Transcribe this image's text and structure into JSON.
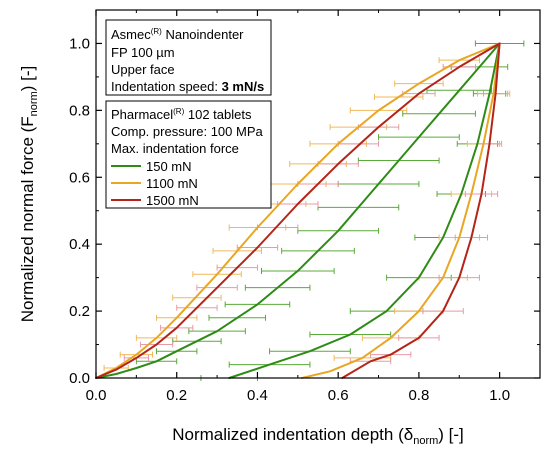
{
  "chart_data": {
    "type": "line",
    "xlabel": {
      "main": "Normalized indentation depth (δ",
      "sub": "norm",
      "end": ") [-]"
    },
    "ylabel": {
      "main": "Normalized normal force (F",
      "sub": "norm",
      "end": ") [-]"
    },
    "xlim": [
      0,
      1.1
    ],
    "ylim": [
      0,
      1.1
    ],
    "xticks": [
      0.0,
      0.2,
      0.4,
      0.6,
      0.8,
      1.0
    ],
    "yticks": [
      0.0,
      0.2,
      0.4,
      0.6,
      0.8,
      1.0
    ],
    "xtick_labels": [
      "0.0",
      "0.2",
      "0.4",
      "0.6",
      "0.8",
      "1.0"
    ],
    "ytick_labels": [
      "0.0",
      "0.2",
      "0.4",
      "0.6",
      "0.8",
      "1.0"
    ],
    "grid": false,
    "legend_placement": "top-left",
    "info_box": {
      "line1_pre": "Asmec",
      "line1_sup": "(R)",
      "line1_post": " Nanoindenter",
      "line2": "FP 100 µm",
      "line3": "Upper face",
      "line4_pre": "Indentation speed: ",
      "line4_bold": "3 mN/s"
    },
    "legend_box": {
      "line1_pre": "Pharmacel",
      "line1_sup": "(R)",
      "line1_post": " 102 tablets",
      "line2": "Comp. pressure: 100 MPa",
      "line3": "Max. indentation force"
    },
    "series": [
      {
        "name": "150 mN",
        "color": "#2e8b16",
        "err_color": "#5aaa3a",
        "loading": [
          [
            0.0,
            0.0
          ],
          [
            0.05,
            0.012
          ],
          [
            0.1,
            0.03
          ],
          [
            0.15,
            0.05
          ],
          [
            0.2,
            0.08
          ],
          [
            0.3,
            0.14
          ],
          [
            0.4,
            0.22
          ],
          [
            0.5,
            0.32
          ],
          [
            0.6,
            0.44
          ],
          [
            0.7,
            0.58
          ],
          [
            0.8,
            0.72
          ],
          [
            0.9,
            0.86
          ],
          [
            0.95,
            0.93
          ],
          [
            1.0,
            1.0
          ]
        ],
        "unloading": [
          [
            1.0,
            1.0
          ],
          [
            0.975,
            0.85
          ],
          [
            0.945,
            0.7
          ],
          [
            0.905,
            0.55
          ],
          [
            0.86,
            0.42
          ],
          [
            0.8,
            0.3
          ],
          [
            0.72,
            0.2
          ],
          [
            0.63,
            0.13
          ],
          [
            0.53,
            0.08
          ],
          [
            0.43,
            0.04
          ],
          [
            0.33,
            0.0
          ]
        ],
        "errors": [
          {
            "x": 0.15,
            "y": 0.05,
            "xerr": 0.05
          },
          {
            "x": 0.2,
            "y": 0.08,
            "xerr": 0.05
          },
          {
            "x": 0.25,
            "y": 0.11,
            "xerr": 0.06
          },
          {
            "x": 0.3,
            "y": 0.14,
            "xerr": 0.07
          },
          {
            "x": 0.35,
            "y": 0.18,
            "xerr": 0.07
          },
          {
            "x": 0.4,
            "y": 0.22,
            "xerr": 0.08
          },
          {
            "x": 0.45,
            "y": 0.27,
            "xerr": 0.08
          },
          {
            "x": 0.5,
            "y": 0.32,
            "xerr": 0.09
          },
          {
            "x": 0.55,
            "y": 0.38,
            "xerr": 0.09
          },
          {
            "x": 0.6,
            "y": 0.44,
            "xerr": 0.1
          },
          {
            "x": 0.65,
            "y": 0.51,
            "xerr": 0.1
          },
          {
            "x": 0.7,
            "y": 0.58,
            "xerr": 0.1
          },
          {
            "x": 0.75,
            "y": 0.65,
            "xerr": 0.1
          },
          {
            "x": 0.8,
            "y": 0.72,
            "xerr": 0.1
          },
          {
            "x": 0.85,
            "y": 0.79,
            "xerr": 0.09
          },
          {
            "x": 0.9,
            "y": 0.86,
            "xerr": 0.08
          },
          {
            "x": 0.95,
            "y": 0.93,
            "xerr": 0.07
          },
          {
            "x": 1.0,
            "y": 1.0,
            "xerr": 0.06
          },
          {
            "x": 0.975,
            "y": 0.85,
            "xerr": 0.04
          },
          {
            "x": 0.945,
            "y": 0.7,
            "xerr": 0.05
          },
          {
            "x": 0.905,
            "y": 0.55,
            "xerr": 0.06
          },
          {
            "x": 0.86,
            "y": 0.42,
            "xerr": 0.07
          },
          {
            "x": 0.8,
            "y": 0.3,
            "xerr": 0.08
          },
          {
            "x": 0.72,
            "y": 0.2,
            "xerr": 0.09
          },
          {
            "x": 0.63,
            "y": 0.13,
            "xerr": 0.1
          },
          {
            "x": 0.53,
            "y": 0.08,
            "xerr": 0.1
          },
          {
            "x": 0.43,
            "y": 0.04,
            "xerr": 0.1
          },
          {
            "x": 0.33,
            "y": 0.0,
            "xerr": 0.07
          }
        ]
      },
      {
        "name": "1100 mN",
        "color": "#e8a623",
        "err_color": "#f0b95a",
        "loading": [
          [
            0.0,
            0.0
          ],
          [
            0.05,
            0.03
          ],
          [
            0.1,
            0.07
          ],
          [
            0.15,
            0.12
          ],
          [
            0.2,
            0.18
          ],
          [
            0.3,
            0.31
          ],
          [
            0.4,
            0.45
          ],
          [
            0.5,
            0.58
          ],
          [
            0.6,
            0.7
          ],
          [
            0.7,
            0.8
          ],
          [
            0.8,
            0.88
          ],
          [
            0.9,
            0.95
          ],
          [
            1.0,
            1.0
          ]
        ],
        "unloading": [
          [
            1.0,
            1.0
          ],
          [
            0.985,
            0.85
          ],
          [
            0.96,
            0.7
          ],
          [
            0.93,
            0.55
          ],
          [
            0.9,
            0.42
          ],
          [
            0.86,
            0.3
          ],
          [
            0.8,
            0.2
          ],
          [
            0.73,
            0.12
          ],
          [
            0.66,
            0.06
          ],
          [
            0.58,
            0.02
          ],
          [
            0.51,
            0.0
          ]
        ],
        "errors": [
          {
            "x": 0.05,
            "y": 0.03,
            "xerr": 0.03
          },
          {
            "x": 0.1,
            "y": 0.07,
            "xerr": 0.04
          },
          {
            "x": 0.15,
            "y": 0.12,
            "xerr": 0.05
          },
          {
            "x": 0.2,
            "y": 0.18,
            "xerr": 0.05
          },
          {
            "x": 0.25,
            "y": 0.24,
            "xerr": 0.06
          },
          {
            "x": 0.3,
            "y": 0.31,
            "xerr": 0.06
          },
          {
            "x": 0.35,
            "y": 0.38,
            "xerr": 0.06
          },
          {
            "x": 0.4,
            "y": 0.45,
            "xerr": 0.07
          },
          {
            "x": 0.45,
            "y": 0.52,
            "xerr": 0.07
          },
          {
            "x": 0.5,
            "y": 0.58,
            "xerr": 0.07
          },
          {
            "x": 0.55,
            "y": 0.64,
            "xerr": 0.07
          },
          {
            "x": 0.6,
            "y": 0.7,
            "xerr": 0.07
          },
          {
            "x": 0.65,
            "y": 0.75,
            "xerr": 0.07
          },
          {
            "x": 0.7,
            "y": 0.8,
            "xerr": 0.07
          },
          {
            "x": 0.75,
            "y": 0.84,
            "xerr": 0.06
          },
          {
            "x": 0.8,
            "y": 0.88,
            "xerr": 0.06
          },
          {
            "x": 0.9,
            "y": 0.95,
            "xerr": 0.05
          },
          {
            "x": 0.985,
            "y": 0.85,
            "xerr": 0.04
          },
          {
            "x": 0.96,
            "y": 0.7,
            "xerr": 0.04
          },
          {
            "x": 0.93,
            "y": 0.55,
            "xerr": 0.05
          },
          {
            "x": 0.9,
            "y": 0.42,
            "xerr": 0.05
          },
          {
            "x": 0.86,
            "y": 0.3,
            "xerr": 0.06
          },
          {
            "x": 0.8,
            "y": 0.2,
            "xerr": 0.06
          },
          {
            "x": 0.73,
            "y": 0.12,
            "xerr": 0.07
          },
          {
            "x": 0.66,
            "y": 0.06,
            "xerr": 0.07
          }
        ]
      },
      {
        "name": "1500 mN",
        "color": "#b52418",
        "err_color": "#e89aa6",
        "loading": [
          [
            0.0,
            0.0
          ],
          [
            0.05,
            0.025
          ],
          [
            0.1,
            0.06
          ],
          [
            0.15,
            0.1
          ],
          [
            0.2,
            0.15
          ],
          [
            0.3,
            0.27
          ],
          [
            0.4,
            0.39
          ],
          [
            0.5,
            0.52
          ],
          [
            0.6,
            0.64
          ],
          [
            0.7,
            0.75
          ],
          [
            0.8,
            0.85
          ],
          [
            0.9,
            0.93
          ],
          [
            1.0,
            1.0
          ]
        ],
        "unloading": [
          [
            1.0,
            1.0
          ],
          [
            0.99,
            0.85
          ],
          [
            0.975,
            0.7
          ],
          [
            0.955,
            0.55
          ],
          [
            0.93,
            0.42
          ],
          [
            0.9,
            0.3
          ],
          [
            0.86,
            0.2
          ],
          [
            0.8,
            0.12
          ],
          [
            0.73,
            0.07
          ],
          [
            0.68,
            0.05
          ],
          [
            0.61,
            0.0
          ]
        ],
        "errors": [
          {
            "x": 0.1,
            "y": 0.06,
            "xerr": 0.03
          },
          {
            "x": 0.15,
            "y": 0.1,
            "xerr": 0.04
          },
          {
            "x": 0.2,
            "y": 0.15,
            "xerr": 0.04
          },
          {
            "x": 0.25,
            "y": 0.21,
            "xerr": 0.05
          },
          {
            "x": 0.3,
            "y": 0.27,
            "xerr": 0.05
          },
          {
            "x": 0.35,
            "y": 0.33,
            "xerr": 0.05
          },
          {
            "x": 0.4,
            "y": 0.39,
            "xerr": 0.05
          },
          {
            "x": 0.45,
            "y": 0.45,
            "xerr": 0.05
          },
          {
            "x": 0.5,
            "y": 0.52,
            "xerr": 0.05
          },
          {
            "x": 0.55,
            "y": 0.58,
            "xerr": 0.05
          },
          {
            "x": 0.6,
            "y": 0.64,
            "xerr": 0.05
          },
          {
            "x": 0.65,
            "y": 0.7,
            "xerr": 0.05
          },
          {
            "x": 0.7,
            "y": 0.75,
            "xerr": 0.05
          },
          {
            "x": 0.8,
            "y": 0.85,
            "xerr": 0.04
          },
          {
            "x": 0.9,
            "y": 0.93,
            "xerr": 0.04
          },
          {
            "x": 0.99,
            "y": 0.85,
            "xerr": 0.03
          },
          {
            "x": 0.975,
            "y": 0.7,
            "xerr": 0.03
          },
          {
            "x": 0.955,
            "y": 0.55,
            "xerr": 0.04
          },
          {
            "x": 0.93,
            "y": 0.42,
            "xerr": 0.04
          },
          {
            "x": 0.9,
            "y": 0.3,
            "xerr": 0.05
          },
          {
            "x": 0.86,
            "y": 0.2,
            "xerr": 0.05
          },
          {
            "x": 0.8,
            "y": 0.12,
            "xerr": 0.05
          },
          {
            "x": 0.73,
            "y": 0.07,
            "xerr": 0.05
          },
          {
            "x": 0.68,
            "y": 0.05,
            "xerr": 0.05
          }
        ]
      }
    ]
  }
}
